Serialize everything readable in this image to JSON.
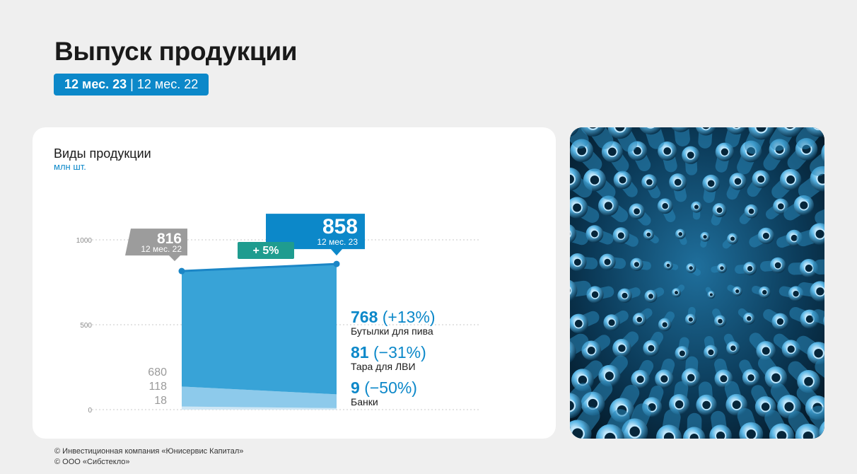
{
  "header": {
    "title": "Выпуск продукции",
    "period_current": "12 мес. 23",
    "period_separator": "|",
    "period_previous": "12 мес. 22"
  },
  "chart_card": {
    "title": "Виды продукции",
    "unit": "млн шт."
  },
  "chart_data": {
    "type": "area",
    "title": "Виды продукции",
    "ylabel": "млн шт.",
    "ylim": [
      0,
      1000
    ],
    "yticks": [
      0,
      500,
      1000
    ],
    "grid": true,
    "x": [
      "12 мес. 22",
      "12 мес. 23"
    ],
    "series": [
      {
        "name": "Бутылки для пива",
        "values": [
          680,
          768
        ],
        "color": "#38a3d7"
      },
      {
        "name": "Тара для ЛВИ",
        "values": [
          118,
          81
        ],
        "color": "#8dcaeb"
      },
      {
        "name": "Банки",
        "values": [
          18,
          9
        ],
        "color": "#cfe7f5"
      }
    ],
    "totals": [
      816,
      858
    ],
    "total_labels": [
      "816",
      "858"
    ],
    "change_label": "+ 5%",
    "start_labels": [
      "680",
      "118",
      "18"
    ],
    "end_labels": [
      {
        "value": "768",
        "change": "(+13%)",
        "name": "Бутылки для пива"
      },
      {
        "value": "81",
        "change": "(−31%)",
        "name": "Тара для ЛВИ"
      },
      {
        "value": "9",
        "change": "(−50%)",
        "name": "Банки"
      }
    ],
    "colors": {
      "accent": "#0c88c9",
      "previous": "#9c9c9c",
      "change": "#1f9c8f",
      "line": "#1b86c6"
    }
  },
  "photo": {
    "icon": "glass-bottles-photo"
  },
  "footer": {
    "line1": "© Инвестиционная компания «Юнисервис Капитал»",
    "line2": "© ООО «Сибстекло»"
  }
}
